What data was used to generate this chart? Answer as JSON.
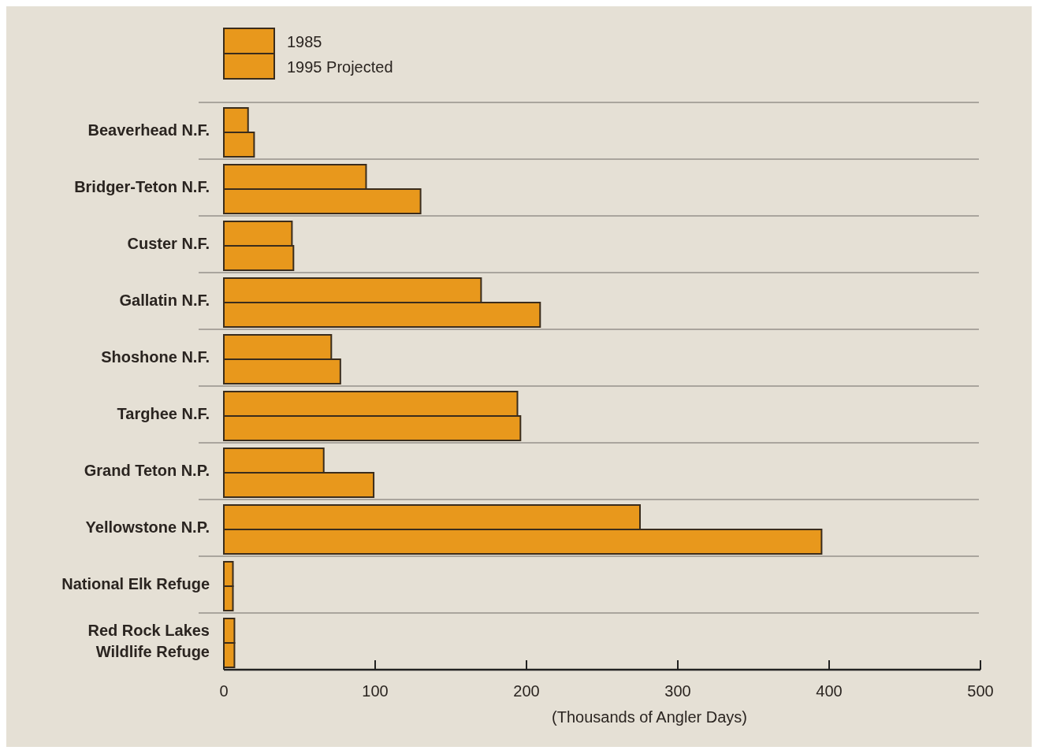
{
  "chart_data": {
    "type": "bar",
    "orientation": "horizontal",
    "xlabel": "(Thousands of Angler Days)",
    "categories": [
      "Beaverhead N.F.",
      "Bridger-Teton N.F.",
      "Custer N.F.",
      "Gallatin N.F.",
      "Shoshone N.F.",
      "Targhee N.F.",
      "Grand Teton N.P.",
      "Yellowstone N.P.",
      "National Elk Refuge",
      "Red Rock Lakes\nWildlife Refuge"
    ],
    "series": [
      {
        "name": "1985",
        "color": "#e8981c",
        "values": [
          16,
          94,
          45,
          170,
          71,
          194,
          66,
          275,
          6,
          7
        ]
      },
      {
        "name": "1995 Projected",
        "color": "#e8981c",
        "values": [
          20,
          130,
          46,
          209,
          77,
          196,
          99,
          395,
          6,
          7
        ]
      }
    ],
    "xlim": [
      0,
      500
    ],
    "xticks": [
      0,
      100,
      200,
      300,
      400,
      500
    ],
    "grid": "y",
    "legend": "top left"
  }
}
